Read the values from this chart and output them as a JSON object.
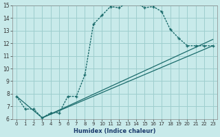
{
  "xlabel": "Humidex (Indice chaleur)",
  "background_color": "#c8eaea",
  "grid_color": "#9ecece",
  "line_color": "#1a6b6b",
  "line1_x": [
    0,
    1,
    2,
    3,
    4,
    5,
    6,
    7,
    8,
    9,
    10,
    11,
    12,
    13,
    14,
    15,
    16,
    17,
    18,
    19,
    20,
    21,
    22,
    23
  ],
  "line1_y": [
    7.8,
    6.8,
    6.8,
    6.1,
    6.5,
    6.5,
    7.8,
    7.8,
    9.5,
    13.5,
    14.2,
    14.9,
    14.8,
    15.2,
    15.2,
    14.8,
    14.9,
    14.5,
    13.1,
    12.4,
    11.8,
    11.8,
    11.8,
    11.8
  ],
  "line2_x": [
    0,
    3,
    23
  ],
  "line2_y": [
    7.8,
    6.1,
    12.3
  ],
  "line3_x": [
    3,
    23
  ],
  "line3_y": [
    6.1,
    11.8
  ],
  "xlim": [
    -0.5,
    23.5
  ],
  "ylim": [
    6,
    15
  ],
  "xticks": [
    0,
    1,
    2,
    3,
    4,
    5,
    6,
    7,
    8,
    9,
    10,
    11,
    12,
    13,
    14,
    15,
    16,
    17,
    18,
    19,
    20,
    21,
    22,
    23
  ],
  "yticks": [
    6,
    7,
    8,
    9,
    10,
    11,
    12,
    13,
    14,
    15
  ]
}
